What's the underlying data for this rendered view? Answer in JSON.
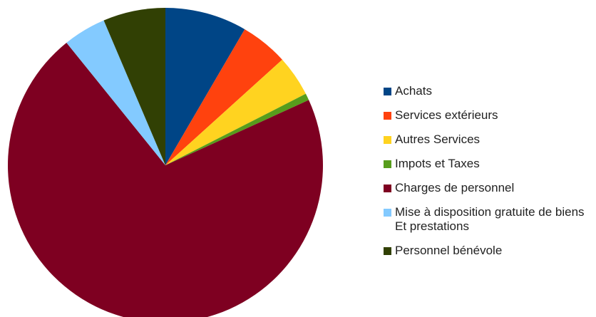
{
  "chart_data": {
    "type": "pie",
    "title": "",
    "legend_position": "right",
    "start_angle_deg": 0,
    "direction": "clockwise",
    "slices": [
      {
        "label": "Achats",
        "value": 8.4,
        "color": "#004586"
      },
      {
        "label": "Services extérieurs",
        "value": 4.9,
        "color": "#ff420e"
      },
      {
        "label": "Autres Services",
        "value": 4.2,
        "color": "#ffd320"
      },
      {
        "label": "Impots et Taxes",
        "value": 0.7,
        "color": "#579d1c"
      },
      {
        "label": "Charges de personnel",
        "value": 71.0,
        "color": "#7e0021"
      },
      {
        "label": "Mise à disposition gratuite de biens\nEt prestations",
        "value": 4.4,
        "color": "#83caff"
      },
      {
        "label": "Personnel bénévole",
        "value": 6.4,
        "color": "#314004"
      }
    ]
  }
}
